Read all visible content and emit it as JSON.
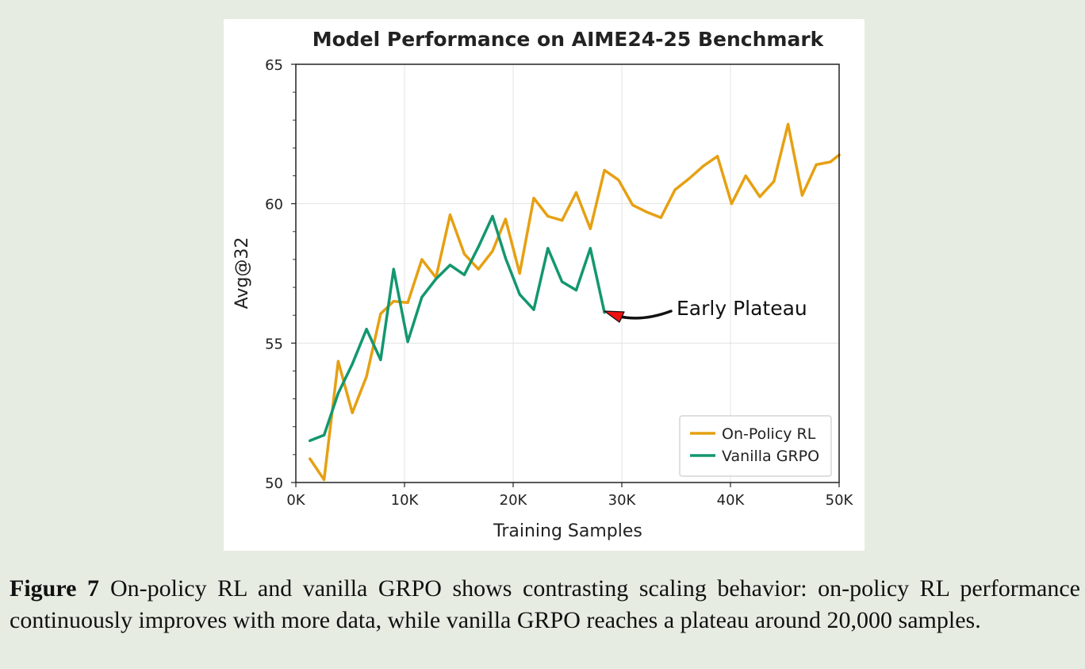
{
  "chart_data": {
    "type": "line",
    "title": "Model Performance on AIME24-25 Benchmark",
    "xlabel": "Training Samples",
    "ylabel": "Avg@32",
    "xlim": [
      0,
      50000
    ],
    "ylim": [
      50,
      65
    ],
    "grid": true,
    "legend_position": "bottom-right",
    "x_ticks": [
      {
        "value": 0,
        "label": "0K"
      },
      {
        "value": 10000,
        "label": "10K"
      },
      {
        "value": 20000,
        "label": "20K"
      },
      {
        "value": 30000,
        "label": "30K"
      },
      {
        "value": 40000,
        "label": "40K"
      },
      {
        "value": 50000,
        "label": "50K"
      }
    ],
    "y_ticks": [
      {
        "value": 50,
        "label": "50"
      },
      {
        "value": 55,
        "label": "55"
      },
      {
        "value": 60,
        "label": "60"
      },
      {
        "value": 65,
        "label": "65"
      }
    ],
    "series": [
      {
        "name": "On-Policy RL",
        "color": "#e6a012",
        "x": [
          1300,
          2600,
          3900,
          5200,
          6500,
          7800,
          9000,
          10300,
          11600,
          12900,
          14200,
          15500,
          16800,
          18100,
          19300,
          20600,
          21900,
          23200,
          24500,
          25800,
          27100,
          28400,
          29700,
          31000,
          32300,
          33600,
          34900,
          36200,
          37500,
          38800,
          40100,
          41400,
          42700,
          44000,
          45300,
          46600,
          47900,
          49200,
          50000
        ],
        "values": [
          50.85,
          50.1,
          54.35,
          52.5,
          53.8,
          56.05,
          56.5,
          56.45,
          58.0,
          57.35,
          59.6,
          58.2,
          57.65,
          58.3,
          59.45,
          57.5,
          60.2,
          59.55,
          59.4,
          60.4,
          59.1,
          61.2,
          60.85,
          59.95,
          59.7,
          59.5,
          60.5,
          60.9,
          61.35,
          61.7,
          60.0,
          61.0,
          60.25,
          60.8,
          62.85,
          60.3,
          61.4,
          61.5,
          61.75
        ]
      },
      {
        "name": "Vanilla GRPO",
        "color": "#13976f",
        "x": [
          1300,
          2600,
          3900,
          5200,
          6500,
          7800,
          9000,
          10300,
          11600,
          12900,
          14200,
          15500,
          16800,
          18100,
          19300,
          20600,
          21900,
          23200,
          24500,
          25800,
          27100,
          28400
        ],
        "values": [
          51.5,
          51.7,
          53.2,
          54.25,
          55.5,
          54.4,
          57.65,
          55.05,
          56.65,
          57.3,
          57.8,
          57.45,
          58.45,
          59.55,
          58.05,
          56.75,
          56.2,
          58.4,
          57.2,
          56.9,
          58.4,
          56.1
        ]
      }
    ],
    "annotations": [
      {
        "text": "Early Plateau",
        "target": {
          "x": 28400,
          "y": 56.1
        },
        "arrow_color": "#ee1111"
      }
    ]
  },
  "caption": {
    "label": "Figure 7",
    "text": "On-policy RL and vanilla GRPO shows contrasting scaling behavior: on-policy RL performance continuously improves with more data, while vanilla GRPO reaches a plateau around 20,000 samples."
  }
}
